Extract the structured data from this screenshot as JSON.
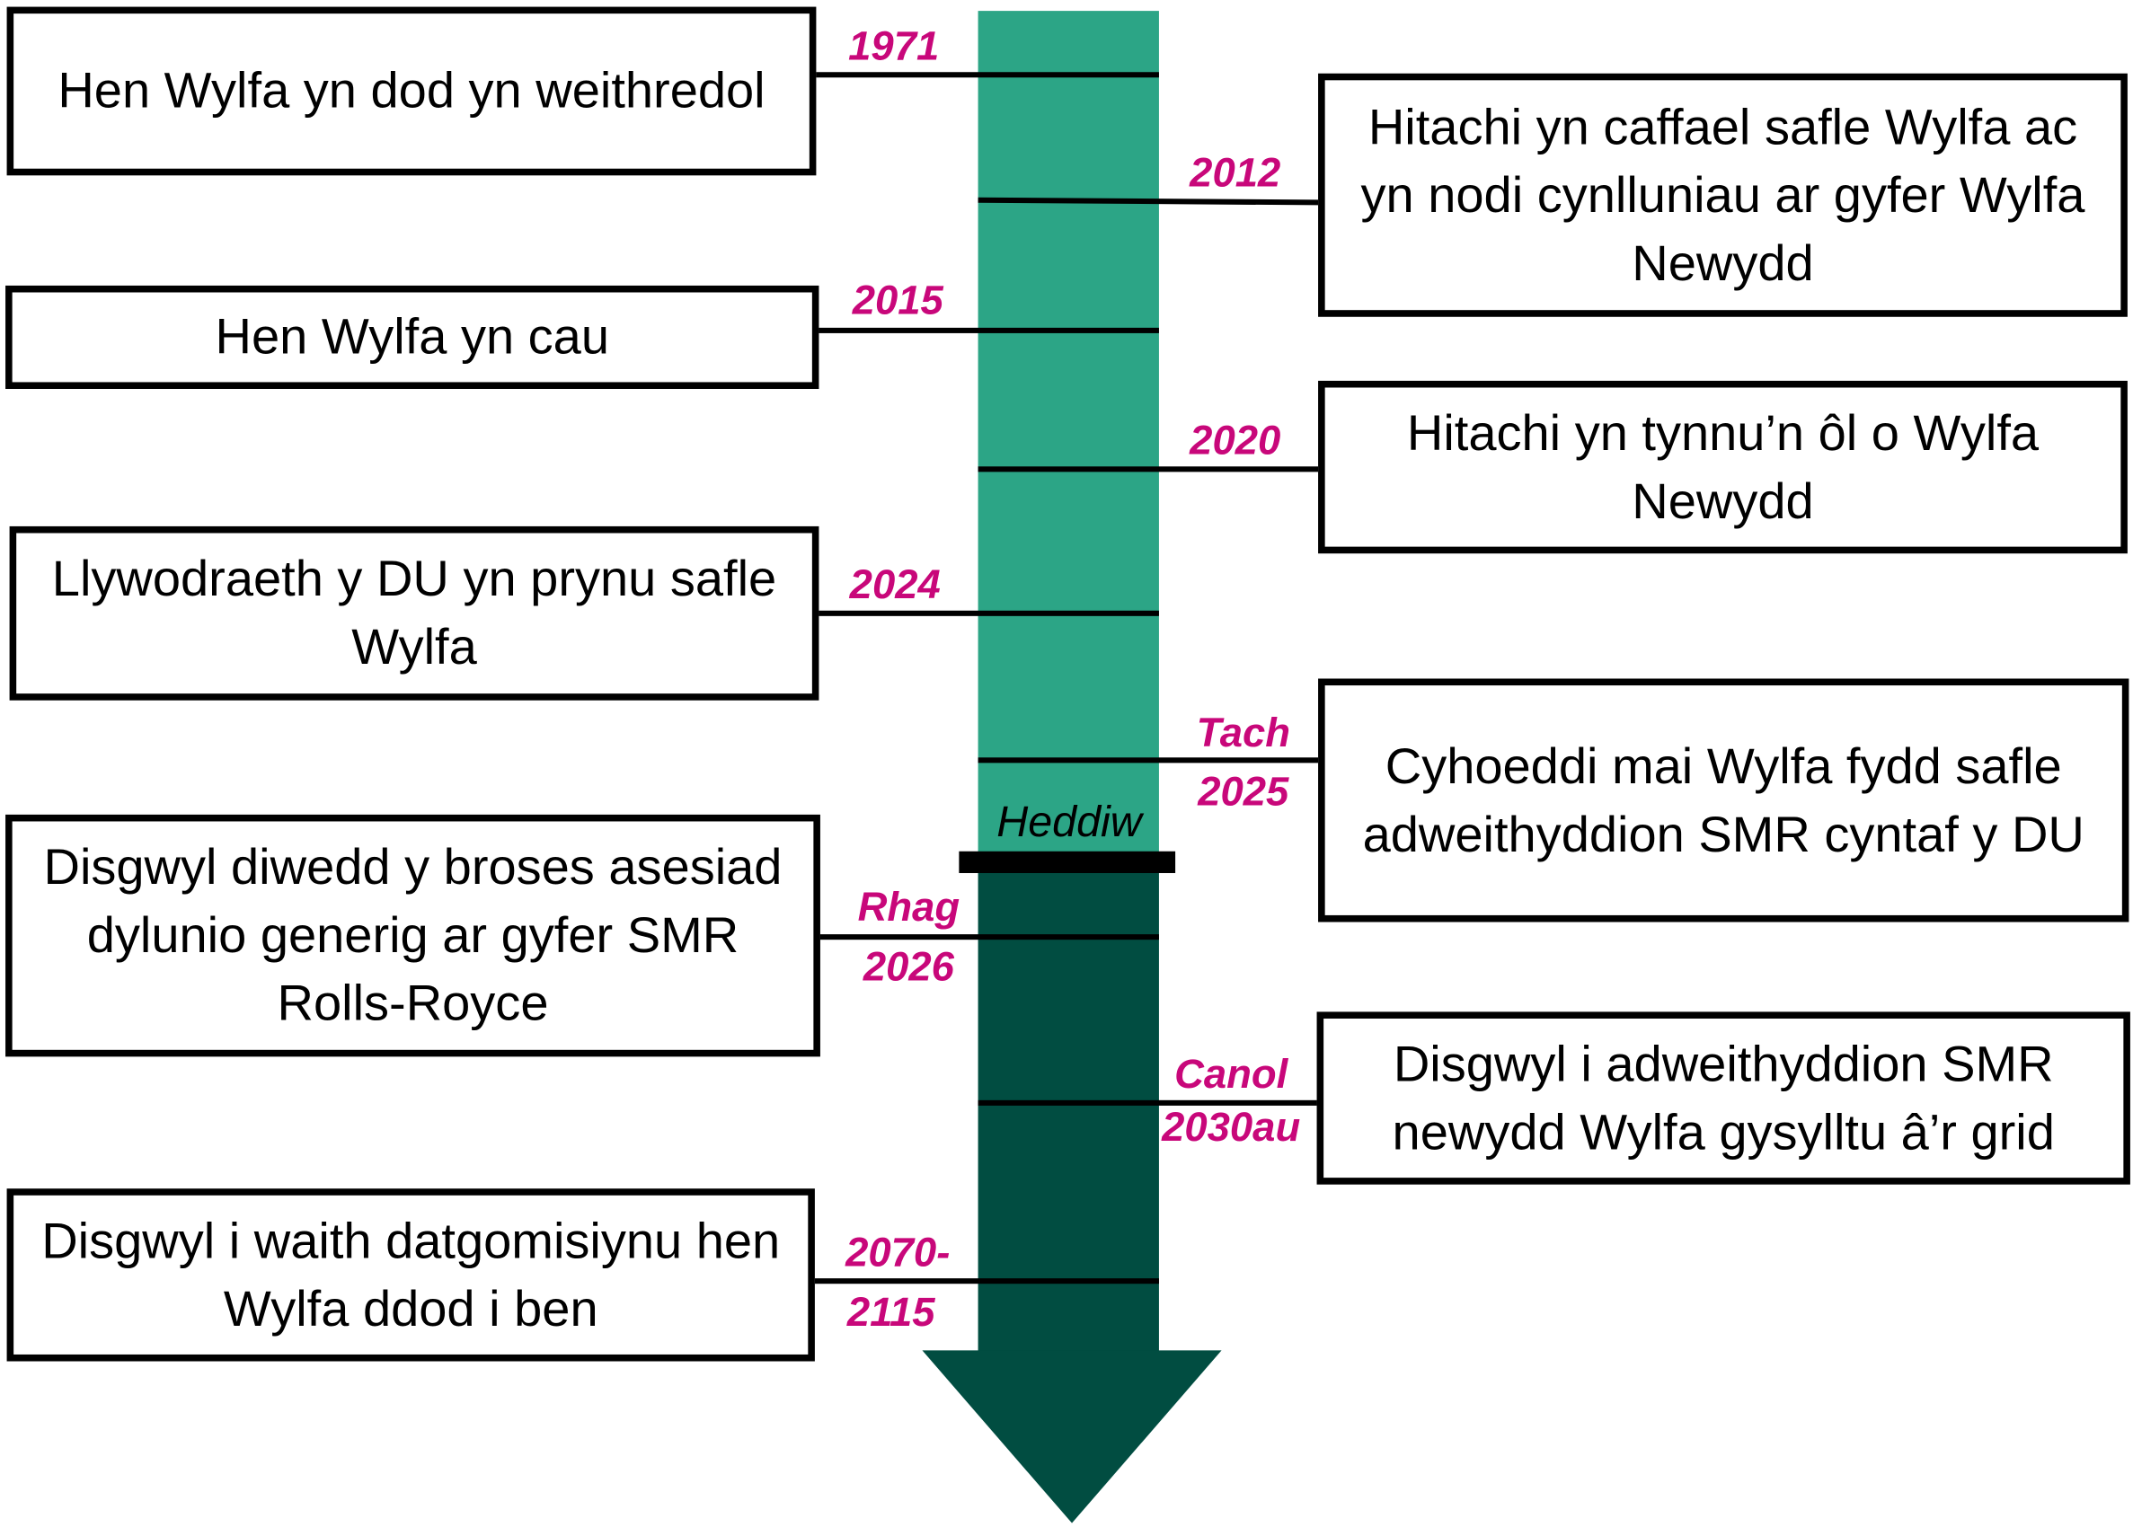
{
  "colors": {
    "past": "#2ca586",
    "future": "#014d41",
    "date_label": "#c8077a",
    "today_marker": "#000000"
  },
  "events": [
    {
      "side": "left",
      "date": "1971",
      "text": "Hen Wylfa yn dod yn weithredol"
    },
    {
      "side": "right",
      "date": "2012",
      "text": "Hitachi yn caffael safle Wylfa ac yn nodi cynlluniau ar gyfer Wylfa Newydd"
    },
    {
      "side": "left",
      "date": "2015",
      "text": "Hen Wylfa yn cau"
    },
    {
      "side": "right",
      "date": "2020",
      "text": "Hitachi yn tynnu’n ôl o Wylfa Newydd"
    },
    {
      "side": "left",
      "date": "2024",
      "text": "Llywodraeth y DU yn prynu safle Wylfa"
    },
    {
      "side": "right",
      "date": "Tach 2025",
      "date_line1": "Tach",
      "date_line2": "2025",
      "text": "Cyhoeddi mai Wylfa fydd safle adweithyddion SMR cyntaf y DU"
    },
    {
      "side": "left",
      "date": "Rhag 2026",
      "date_line1": "Rhag",
      "date_line2": "2026",
      "text": "Disgwyl diwedd y broses asesiad dylunio generig ar gyfer SMR Rolls-Royce"
    },
    {
      "side": "right",
      "date": "Canol 2030au",
      "date_line1": "Canol",
      "date_line2": "2030au",
      "text": "Disgwyl i adweithyddion SMR newydd Wylfa gysylltu â’r grid"
    },
    {
      "side": "left",
      "date": "2070-2115",
      "date_line1": "2070-",
      "date_line2": "2115",
      "text": "Disgwyl i waith datgomisiynu hen Wylfa ddod i ben"
    }
  ],
  "today_label": "Heddiw"
}
